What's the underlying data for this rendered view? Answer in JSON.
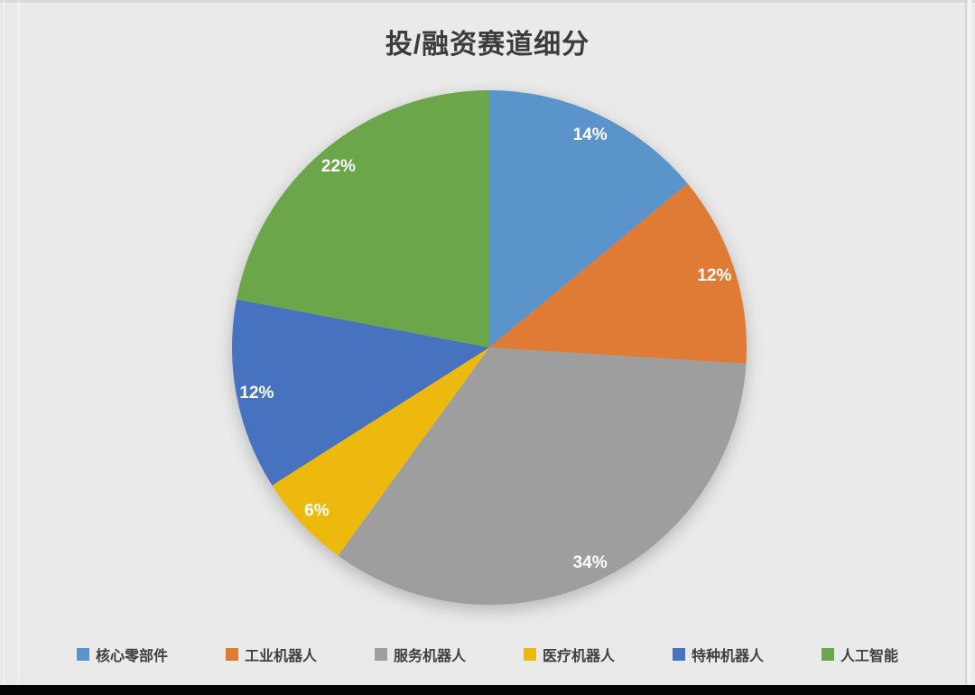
{
  "title": "投/融资赛道细分",
  "chart_data": {
    "type": "pie",
    "title": "投/融资赛道细分",
    "categories": [
      "核心零部件",
      "工业机器人",
      "服务机器人",
      "医疗机器人",
      "特种机器人",
      "人工智能"
    ],
    "values": [
      14,
      12,
      34,
      6,
      12,
      22
    ],
    "data_labels": [
      "14%",
      "12%",
      "34%",
      "6%",
      "12%",
      "22%"
    ],
    "colors": [
      "#5B94CB",
      "#DF7B35",
      "#9E9E9E",
      "#EEB90F",
      "#4672BF",
      "#6CA64B"
    ],
    "unit": "%",
    "start_angle": "top",
    "direction": "clockwise",
    "legend_position": "bottom",
    "data_label_color": "#FFFFFF",
    "background_color": "#EAEAEA",
    "title_color": "#3c3c3c"
  }
}
